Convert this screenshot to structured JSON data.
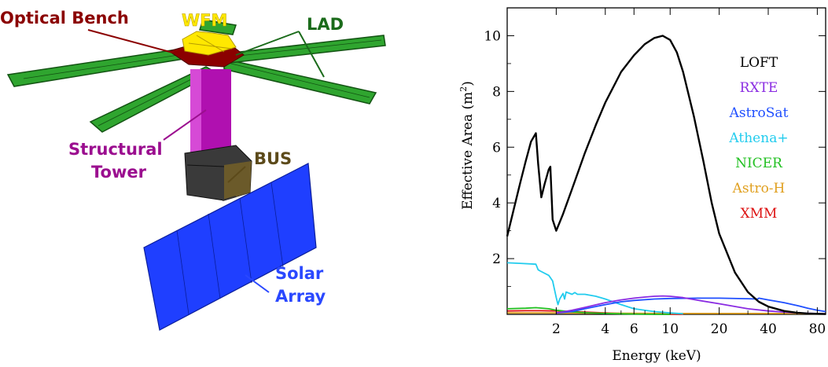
{
  "diagram": {
    "labels": {
      "optical_bench": "Optical Bench",
      "wfm": "WFM",
      "lad": "LAD",
      "structural": "Structural",
      "tower": "Tower",
      "bus": "BUS",
      "solar": "Solar",
      "array": "Array"
    },
    "colors": {
      "optical_bench": "#8b0000",
      "wfm": "#ffff00",
      "lad": "#1b6b1b",
      "structural_tower": "#9b0e8f",
      "bus": "#5c4a1a",
      "solar_array": "#2a48ff",
      "panel_green": "#2fa52f",
      "tower_body": "#b010b0"
    }
  },
  "chart_data": {
    "type": "line",
    "xlabel": "Energy (keV)",
    "ylabel": "Effective Area (m",
    "ylabel_sup": "2",
    "ylabel_close": ")",
    "x_scale": "log",
    "xlim": [
      1.0,
      90
    ],
    "ylim": [
      0,
      11
    ],
    "x_ticks": [
      2,
      4,
      6,
      10,
      20,
      40,
      80
    ],
    "x_tick_labels": [
      "2",
      "4",
      "6",
      "10",
      "20",
      "40",
      "80"
    ],
    "y_ticks": [
      2,
      4,
      6,
      8,
      10
    ],
    "y_tick_labels": [
      "2",
      "4",
      "6",
      "8",
      "10"
    ],
    "legend_position": "right",
    "series": [
      {
        "name": "LOFT",
        "color": "#000000",
        "x": [
          1.0,
          1.1,
          1.2,
          1.3,
          1.4,
          1.5,
          1.55,
          1.62,
          1.7,
          1.8,
          1.84,
          1.9,
          2.0,
          2.2,
          2.5,
          3.0,
          3.5,
          4,
          5,
          6,
          7,
          8,
          9,
          10,
          11,
          12,
          14,
          16,
          18,
          20,
          25,
          30,
          35,
          40,
          50,
          60,
          70,
          80,
          90
        ],
        "y": [
          2.8,
          3.8,
          4.7,
          5.5,
          6.2,
          6.5,
          5.4,
          4.2,
          4.7,
          5.2,
          5.3,
          3.4,
          3.0,
          3.6,
          4.5,
          5.8,
          6.8,
          7.6,
          8.7,
          9.3,
          9.7,
          9.92,
          10.0,
          9.85,
          9.4,
          8.7,
          7.1,
          5.5,
          4.0,
          2.9,
          1.5,
          0.8,
          0.45,
          0.28,
          0.12,
          0.06,
          0.03,
          0.02,
          0.01
        ]
      },
      {
        "name": "RXTE",
        "color": "#8a2be2",
        "x": [
          2,
          2.5,
          3,
          4,
          5,
          6,
          7,
          8,
          9,
          10,
          12,
          15,
          20,
          30,
          40,
          60,
          90
        ],
        "y": [
          0.05,
          0.15,
          0.25,
          0.42,
          0.52,
          0.58,
          0.62,
          0.65,
          0.66,
          0.65,
          0.6,
          0.5,
          0.38,
          0.2,
          0.12,
          0.05,
          0.02
        ]
      },
      {
        "name": "AstroSat",
        "color": "#1f4fff",
        "x": [
          2,
          2.5,
          3,
          4,
          5,
          6,
          8,
          10,
          15,
          20,
          30,
          34.5,
          35,
          40,
          50,
          60,
          70,
          80,
          90
        ],
        "y": [
          0.05,
          0.1,
          0.2,
          0.35,
          0.45,
          0.5,
          0.55,
          0.57,
          0.58,
          0.58,
          0.56,
          0.55,
          0.58,
          0.52,
          0.42,
          0.32,
          0.22,
          0.15,
          0.1
        ]
      },
      {
        "name": "Athena+",
        "color": "#22ccee",
        "x": [
          1.0,
          1.2,
          1.5,
          1.55,
          1.6,
          1.8,
          1.9,
          2.0,
          2.05,
          2.1,
          2.2,
          2.25,
          2.3,
          2.5,
          2.6,
          2.7,
          3,
          3.5,
          4,
          5,
          6,
          8,
          10,
          12
        ],
        "y": [
          1.85,
          1.83,
          1.8,
          1.6,
          1.55,
          1.4,
          1.2,
          0.6,
          0.35,
          0.55,
          0.75,
          0.55,
          0.8,
          0.72,
          0.78,
          0.72,
          0.72,
          0.65,
          0.55,
          0.35,
          0.2,
          0.1,
          0.05,
          0.02
        ]
      },
      {
        "name": "NICER",
        "color": "#22c022",
        "x": [
          1.0,
          1.3,
          1.5,
          1.8,
          2.0,
          2.2,
          2.5,
          3,
          4,
          5,
          6,
          8,
          10
        ],
        "y": [
          0.2,
          0.22,
          0.24,
          0.2,
          0.15,
          0.12,
          0.09,
          0.06,
          0.03,
          0.02,
          0.01,
          0.0,
          0.0
        ]
      },
      {
        "name": "Astro-H",
        "color": "#e0a020",
        "x": [
          1.0,
          2,
          4,
          6,
          10,
          20,
          40,
          60,
          80,
          90
        ],
        "y": [
          0.05,
          0.05,
          0.04,
          0.04,
          0.03,
          0.03,
          0.03,
          0.03,
          0.02,
          0.02
        ]
      },
      {
        "name": "XMM",
        "color": "#dd1111",
        "x": [
          1.0,
          1.3,
          1.6,
          2,
          2.5,
          3,
          4,
          5,
          6,
          8,
          10,
          12
        ],
        "y": [
          0.12,
          0.13,
          0.13,
          0.12,
          0.1,
          0.08,
          0.05,
          0.03,
          0.02,
          0.01,
          0.005,
          0.0
        ]
      }
    ]
  }
}
